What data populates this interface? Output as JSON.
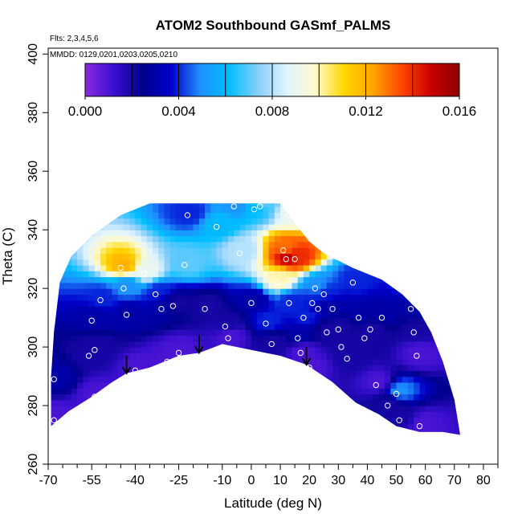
{
  "chart_data": {
    "type": "heatmap",
    "title": "ATOM2 Southbound GASmf_PALMS",
    "flights_label": "Flts: 2,3,4,5,6",
    "dates_label": "MMDD: 0129,0201,0203,0205,0210",
    "xlabel": "Latitude (deg N)",
    "ylabel": "Theta (C)",
    "xlim": [
      -70,
      85
    ],
    "ylim": [
      260,
      402
    ],
    "x_ticks": [
      -70,
      -55,
      -40,
      -25,
      -10,
      0,
      10,
      20,
      30,
      40,
      50,
      60,
      70,
      80
    ],
    "x_tick_labels": [
      "-70",
      "-55",
      "-40",
      "-25",
      "-10",
      "0",
      "10",
      "20",
      "30",
      "40",
      "50",
      "60",
      "70",
      "80"
    ],
    "x_minor_ticks": [
      -65,
      -60,
      -50,
      -45,
      -35,
      -30,
      -20,
      -15,
      -5,
      5,
      15,
      25,
      35,
      45,
      55,
      65,
      75,
      85
    ],
    "y_ticks": [
      260,
      280,
      300,
      320,
      340,
      360,
      380,
      400
    ],
    "y_tick_labels": [
      "260",
      "280",
      "300",
      "320",
      "340",
      "360",
      "380",
      "400"
    ],
    "colorbar": {
      "range": [
        0,
        0.016
      ],
      "tick_values": [
        0,
        0.004,
        0.008,
        0.012,
        0.016
      ],
      "tick_labels": [
        "0.000",
        "0.004",
        "0.008",
        "0.012",
        "0.016"
      ],
      "colors": [
        "#8a2be2",
        "#3b0fd0",
        "#00008b",
        "#0000cd",
        "#1e90ff",
        "#00bfff",
        "#87cefa",
        "#e0f4ff",
        "#fffacd",
        "#ffd700",
        "#ffa500",
        "#ff4500",
        "#cc0000",
        "#8b0000"
      ]
    },
    "arrows": [
      {
        "lat": -43,
        "theta": 291
      },
      {
        "lat": -18,
        "theta": 298
      },
      {
        "lat": 19,
        "theta": 294
      }
    ],
    "observations": [
      {
        "lat": -68,
        "theta": 289,
        "value": 0.003
      },
      {
        "lat": -68,
        "theta": 275,
        "value": 0.001
      },
      {
        "lat": -56,
        "theta": 297,
        "value": 0.002
      },
      {
        "lat": -55,
        "theta": 309,
        "value": 0.003
      },
      {
        "lat": -54,
        "theta": 299,
        "value": 0.002
      },
      {
        "lat": -52,
        "theta": 316,
        "value": 0.004
      },
      {
        "lat": -54,
        "theta": 283,
        "value": 0.001
      },
      {
        "lat": -45,
        "theta": 327,
        "value": 0.012
      },
      {
        "lat": -44,
        "theta": 320,
        "value": 0.005
      },
      {
        "lat": -43,
        "theta": 311,
        "value": 0.003
      },
      {
        "lat": -40,
        "theta": 292,
        "value": 0.001
      },
      {
        "lat": -37,
        "theta": 325,
        "value": 0.009
      },
      {
        "lat": -33,
        "theta": 318,
        "value": 0.004
      },
      {
        "lat": -31,
        "theta": 313,
        "value": 0.003
      },
      {
        "lat": -29,
        "theta": 295,
        "value": 0.001
      },
      {
        "lat": -27,
        "theta": 314,
        "value": 0.002
      },
      {
        "lat": -25,
        "theta": 298,
        "value": 0.001
      },
      {
        "lat": -23,
        "theta": 328,
        "value": 0.007
      },
      {
        "lat": -22,
        "theta": 345,
        "value": 0.004
      },
      {
        "lat": -16,
        "theta": 313,
        "value": 0.002
      },
      {
        "lat": -12,
        "theta": 341,
        "value": 0.006
      },
      {
        "lat": -9,
        "theta": 307,
        "value": 0.002
      },
      {
        "lat": -8,
        "theta": 303,
        "value": 0.001
      },
      {
        "lat": -6,
        "theta": 348,
        "value": 0.005
      },
      {
        "lat": -4,
        "theta": 332,
        "value": 0.008
      },
      {
        "lat": 0,
        "theta": 315,
        "value": 0.003
      },
      {
        "lat": 1,
        "theta": 347,
        "value": 0.006
      },
      {
        "lat": 3,
        "theta": 348,
        "value": 0.007
      },
      {
        "lat": 5,
        "theta": 308,
        "value": 0.004
      },
      {
        "lat": 7,
        "theta": 301,
        "value": 0.002
      },
      {
        "lat": 9,
        "theta": 322,
        "value": 0.01
      },
      {
        "lat": 11,
        "theta": 333,
        "value": 0.013
      },
      {
        "lat": 12,
        "theta": 330,
        "value": 0.015
      },
      {
        "lat": 13,
        "theta": 315,
        "value": 0.004
      },
      {
        "lat": 13,
        "theta": 345,
        "value": 0.009
      },
      {
        "lat": 15,
        "theta": 330,
        "value": 0.014
      },
      {
        "lat": 16,
        "theta": 303,
        "value": 0.003
      },
      {
        "lat": 17,
        "theta": 298,
        "value": 0.001
      },
      {
        "lat": 18,
        "theta": 310,
        "value": 0.004
      },
      {
        "lat": 20,
        "theta": 293,
        "value": 0.001
      },
      {
        "lat": 21,
        "theta": 315,
        "value": 0.004
      },
      {
        "lat": 22,
        "theta": 320,
        "value": 0.005
      },
      {
        "lat": 23,
        "theta": 313,
        "value": 0.003
      },
      {
        "lat": 25,
        "theta": 318,
        "value": 0.004
      },
      {
        "lat": 26,
        "theta": 305,
        "value": 0.002
      },
      {
        "lat": 28,
        "theta": 313,
        "value": 0.003
      },
      {
        "lat": 30,
        "theta": 306,
        "value": 0.002
      },
      {
        "lat": 31,
        "theta": 300,
        "value": 0.002
      },
      {
        "lat": 33,
        "theta": 296,
        "value": 0.002
      },
      {
        "lat": 35,
        "theta": 322,
        "value": 0.004
      },
      {
        "lat": 37,
        "theta": 310,
        "value": 0.003
      },
      {
        "lat": 39,
        "theta": 303,
        "value": 0.002
      },
      {
        "lat": 41,
        "theta": 306,
        "value": 0.002
      },
      {
        "lat": 43,
        "theta": 287,
        "value": 0.001
      },
      {
        "lat": 45,
        "theta": 310,
        "value": 0.003
      },
      {
        "lat": 47,
        "theta": 280,
        "value": 0.002
      },
      {
        "lat": 50,
        "theta": 284,
        "value": 0.005
      },
      {
        "lat": 51,
        "theta": 275,
        "value": 0.002
      },
      {
        "lat": 53,
        "theta": 321,
        "value": 0.004
      },
      {
        "lat": 55,
        "theta": 313,
        "value": 0.003
      },
      {
        "lat": 56,
        "theta": 305,
        "value": 0.002
      },
      {
        "lat": 57,
        "theta": 297,
        "value": 0.001
      },
      {
        "lat": 58,
        "theta": 273,
        "value": 0.001
      }
    ],
    "grid": false,
    "legend": "colorbar top"
  }
}
